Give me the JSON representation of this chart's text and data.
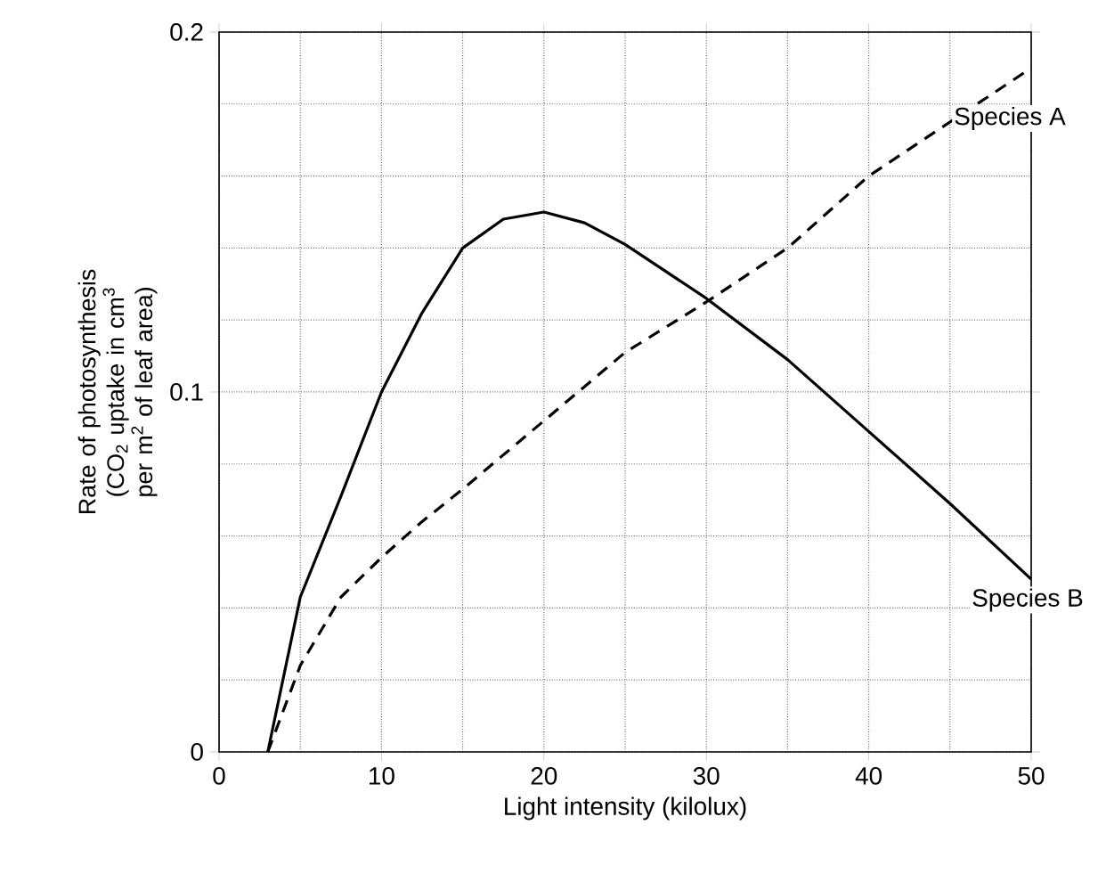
{
  "chart_data": {
    "type": "line",
    "xlabel": "Light intensity (kilolux)",
    "ylabel": "Rate of photosynthesis (CO$_{2}$ uptake in cm$^{3}$ per m$^{2}$ of leaf area)",
    "xlim": [
      0,
      50
    ],
    "ylim": [
      0,
      0.2
    ],
    "xticks": [
      0,
      10,
      20,
      30,
      40,
      50
    ],
    "yticks": [
      0,
      0.1,
      0.2
    ],
    "grid": true,
    "legend": false,
    "marker": "none",
    "series": [
      {
        "name": "Species A",
        "color": "#000000",
        "line_style": "dashed",
        "x": [
          3,
          5,
          7.5,
          10,
          12.5,
          15,
          20,
          25,
          30,
          35,
          40,
          45,
          50
        ],
        "values": [
          0,
          0.024,
          0.043,
          0.054,
          0.064,
          0.073,
          0.092,
          0.111,
          0.125,
          0.14,
          0.16,
          0.175,
          0.19
        ]
      },
      {
        "name": "Species B",
        "color": "#000000",
        "line_style": "solid",
        "x": [
          3,
          5,
          7.5,
          10,
          12.5,
          15,
          17.5,
          20,
          22.5,
          25,
          30,
          35,
          40,
          45,
          50
        ],
        "values": [
          0,
          0.043,
          0.071,
          0.1,
          0.122,
          0.14,
          0.148,
          0.15,
          0.147,
          0.141,
          0.126,
          0.109,
          0.089,
          0.069,
          0.048
        ]
      }
    ]
  }
}
